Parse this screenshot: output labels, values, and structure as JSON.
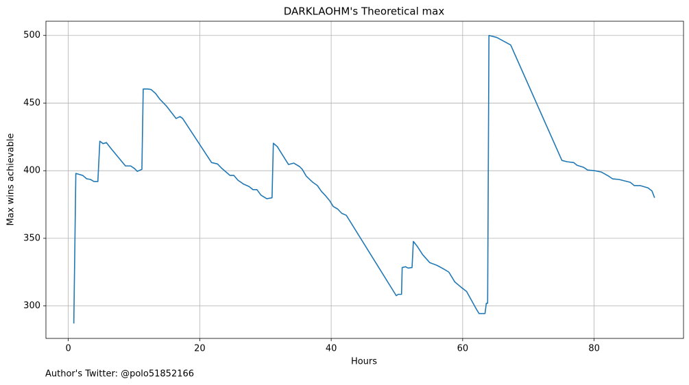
{
  "chart_data": {
    "type": "line",
    "title": "DARKLAOHM's Theoretical max",
    "x_label": "Hours",
    "y_label": "Max wins achievable",
    "annotation": "Author's Twitter: @polo51852166",
    "color": "#1f77b4",
    "grid": true,
    "xlim": [
      -3.4,
      93.6
    ],
    "ylim": [
      276,
      510.5
    ],
    "xticks": [
      0,
      20,
      40,
      60,
      80
    ],
    "yticks": [
      300,
      350,
      400,
      450,
      500
    ],
    "x": [
      0.84,
      1.15,
      2.2,
      2.8,
      3.4,
      3.9,
      4.5,
      4.8,
      5.3,
      5.8,
      6.4,
      8.7,
      9.5,
      10.1,
      10.5,
      11.2,
      11.4,
      12.1,
      12.6,
      13.3,
      13.9,
      14.9,
      16.4,
      17,
      17.4,
      21.8,
      22.7,
      23.3,
      24.6,
      25.2,
      25.8,
      26.7,
      27.5,
      28.1,
      28.7,
      29.3,
      29.96,
      30.2,
      31,
      31.2,
      31.8,
      33.5,
      34.3,
      35.2,
      35.6,
      36.2,
      37.2,
      37.9,
      38.5,
      39.1,
      39.8,
      40.3,
      41,
      41.6,
      42.3,
      49.9,
      50.2,
      50.7,
      50.8,
      51.3,
      51.7,
      52.3,
      52.5,
      53.1,
      53.9,
      55,
      56.1,
      57.1,
      57.9,
      58.8,
      59.8,
      60.6,
      62.1,
      62.5,
      63.4,
      63.6,
      63.8,
      64,
      64.8,
      65.2,
      66.9,
      67.3,
      75.1,
      75.9,
      76.9,
      77.4,
      78.4,
      79,
      80.1,
      81.1,
      82.2,
      82.8,
      83.8,
      85.5,
      86.1,
      87,
      88.2,
      88.8,
      89.2
    ],
    "values": [
      287,
      398,
      396.5,
      394,
      393.5,
      392,
      392,
      421.8,
      420,
      420.8,
      417,
      403.5,
      403.5,
      401.5,
      399.5,
      401,
      460.4,
      460.4,
      460,
      457,
      453,
      448,
      438.6,
      440,
      438.6,
      406,
      405,
      402,
      396.5,
      396.5,
      393,
      390,
      388.3,
      386,
      386,
      382,
      380,
      379.3,
      380,
      420.3,
      417.8,
      404.6,
      405.6,
      403,
      401,
      396,
      391.4,
      389,
      384.8,
      381.7,
      377.6,
      373.6,
      371.6,
      368.5,
      367,
      307.6,
      308.6,
      308.6,
      328.4,
      329,
      328,
      328.4,
      347.7,
      344,
      338,
      332,
      330,
      327.4,
      325,
      317.8,
      313.7,
      310.7,
      297.5,
      294.4,
      294.4,
      302,
      302,
      500,
      499,
      498.5,
      494,
      493,
      407.6,
      406.6,
      406,
      404,
      402.5,
      400.5,
      400,
      399,
      396,
      394,
      393.5,
      391.4,
      389,
      389,
      387.3,
      385,
      380
    ]
  }
}
